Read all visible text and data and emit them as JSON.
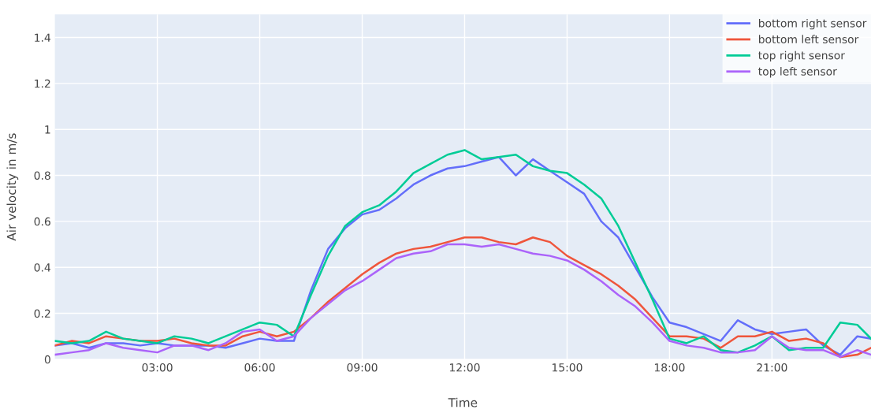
{
  "chart_data": {
    "type": "line",
    "xlabel": "Time",
    "ylabel": "Air velocity in m/s",
    "x": [
      0,
      0.5,
      1,
      1.5,
      2,
      2.5,
      3,
      3.5,
      4,
      4.5,
      5,
      5.5,
      6,
      6.5,
      7,
      7.5,
      8,
      8.5,
      9,
      9.5,
      10,
      10.5,
      11,
      11.5,
      12,
      12.5,
      13,
      13.5,
      14,
      14.5,
      15,
      15.5,
      16,
      16.5,
      17,
      17.5,
      18,
      18.5,
      19,
      19.5,
      20,
      20.5,
      21,
      21.5,
      22,
      22.5,
      23,
      23.5,
      23.9
    ],
    "series": [
      {
        "name": "bottom right sensor",
        "color": "#636efa",
        "values": [
          0.06,
          0.07,
          0.05,
          0.07,
          0.07,
          0.06,
          0.07,
          0.06,
          0.06,
          0.06,
          0.05,
          0.07,
          0.09,
          0.08,
          0.08,
          0.3,
          0.48,
          0.57,
          0.63,
          0.65,
          0.7,
          0.76,
          0.8,
          0.83,
          0.84,
          0.86,
          0.88,
          0.8,
          0.87,
          0.82,
          0.77,
          0.72,
          0.6,
          0.53,
          0.4,
          0.27,
          0.16,
          0.14,
          0.11,
          0.08,
          0.17,
          0.13,
          0.11,
          0.12,
          0.13,
          0.06,
          0.02,
          0.1,
          0.09
        ]
      },
      {
        "name": "bottom left sensor",
        "color": "#ef553b",
        "values": [
          0.06,
          0.08,
          0.07,
          0.1,
          0.09,
          0.08,
          0.08,
          0.09,
          0.07,
          0.06,
          0.06,
          0.1,
          0.12,
          0.1,
          0.12,
          0.18,
          0.25,
          0.31,
          0.37,
          0.42,
          0.46,
          0.48,
          0.49,
          0.51,
          0.53,
          0.53,
          0.51,
          0.5,
          0.53,
          0.51,
          0.45,
          0.41,
          0.37,
          0.32,
          0.26,
          0.18,
          0.1,
          0.1,
          0.09,
          0.05,
          0.1,
          0.1,
          0.12,
          0.08,
          0.09,
          0.07,
          0.01,
          0.02,
          0.05
        ]
      },
      {
        "name": "top right sensor",
        "color": "#00cc96",
        "values": [
          0.08,
          0.07,
          0.08,
          0.12,
          0.09,
          0.08,
          0.07,
          0.1,
          0.09,
          0.07,
          0.1,
          0.13,
          0.16,
          0.15,
          0.1,
          0.28,
          0.45,
          0.58,
          0.64,
          0.67,
          0.73,
          0.81,
          0.85,
          0.89,
          0.91,
          0.87,
          0.88,
          0.89,
          0.84,
          0.82,
          0.81,
          0.76,
          0.7,
          0.58,
          0.42,
          0.26,
          0.09,
          0.07,
          0.1,
          0.04,
          0.03,
          0.06,
          0.1,
          0.04,
          0.05,
          0.05,
          0.16,
          0.15,
          0.09
        ]
      },
      {
        "name": "top left sensor",
        "color": "#ab63fa",
        "values": [
          0.02,
          0.03,
          0.04,
          0.07,
          0.05,
          0.04,
          0.03,
          0.06,
          0.06,
          0.04,
          0.07,
          0.12,
          0.13,
          0.08,
          0.1,
          0.18,
          0.24,
          0.3,
          0.34,
          0.39,
          0.44,
          0.46,
          0.47,
          0.5,
          0.5,
          0.49,
          0.5,
          0.48,
          0.46,
          0.45,
          0.43,
          0.39,
          0.34,
          0.28,
          0.23,
          0.16,
          0.08,
          0.06,
          0.05,
          0.03,
          0.03,
          0.04,
          0.1,
          0.05,
          0.04,
          0.04,
          0.01,
          0.04,
          0.02
        ]
      }
    ],
    "xlim": [
      0,
      23.9
    ],
    "xticks": [
      {
        "value": 3,
        "label": "03:00"
      },
      {
        "value": 6,
        "label": "06:00"
      },
      {
        "value": 9,
        "label": "09:00"
      },
      {
        "value": 12,
        "label": "12:00"
      },
      {
        "value": 15,
        "label": "15:00"
      },
      {
        "value": 18,
        "label": "18:00"
      },
      {
        "value": 21,
        "label": "21:00"
      }
    ],
    "ylim": [
      0,
      1.5
    ],
    "yticks": [
      0,
      0.2,
      0.4,
      0.6,
      0.8,
      1,
      1.2,
      1.4
    ],
    "grid": true,
    "legend": "top right",
    "marker": "none",
    "line_style": "solid"
  }
}
